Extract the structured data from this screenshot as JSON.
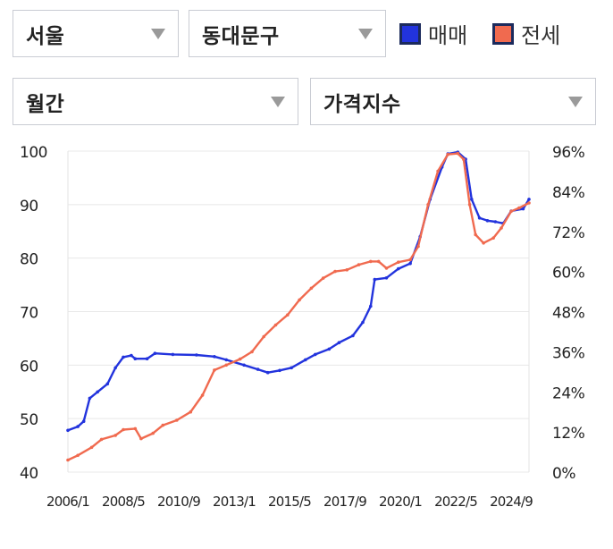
{
  "filters": {
    "region": "서울",
    "district": "동대문구",
    "period": "월간",
    "index_type": "가격지수"
  },
  "legend": [
    {
      "label": "매매",
      "color": "#2233dd"
    },
    {
      "label": "전세",
      "color": "#f06a4f"
    }
  ],
  "chart_data": {
    "type": "line",
    "title": "",
    "x_ticks": [
      "2006/1",
      "2008/5",
      "2010/9",
      "2013/1",
      "2015/5",
      "2017/9",
      "2020/1",
      "2022/5",
      "2024/9"
    ],
    "x_range": [
      "2006/1",
      "2025/6"
    ],
    "y_left": {
      "ticks": [
        "100",
        "90",
        "80",
        "70",
        "60",
        "50",
        "40"
      ],
      "range": [
        40,
        100
      ]
    },
    "y_right": {
      "ticks": [
        "96%",
        "84%",
        "72%",
        "60%",
        "48%",
        "36%",
        "24%",
        "12%",
        "0%"
      ],
      "range": [
        0,
        96
      ]
    },
    "grid": true,
    "series": [
      {
        "name": "매매",
        "color": "#2233dd",
        "axis": "left",
        "points": [
          [
            "2006/1",
            47.8
          ],
          [
            "2006/6",
            48.5
          ],
          [
            "2006/9",
            49.5
          ],
          [
            "2006/12",
            53.8
          ],
          [
            "2007/4",
            55.0
          ],
          [
            "2007/9",
            56.5
          ],
          [
            "2008/1",
            59.5
          ],
          [
            "2008/5",
            61.5
          ],
          [
            "2008/9",
            61.8
          ],
          [
            "2008/11",
            61.2
          ],
          [
            "2009/5",
            61.2
          ],
          [
            "2009/9",
            62.2
          ],
          [
            "2010/6",
            62.0
          ],
          [
            "2011/6",
            61.9
          ],
          [
            "2012/3",
            61.6
          ],
          [
            "2012/9",
            61.0
          ],
          [
            "2013/6",
            60.0
          ],
          [
            "2014/1",
            59.2
          ],
          [
            "2014/6",
            58.6
          ],
          [
            "2014/12",
            59.0
          ],
          [
            "2015/6",
            59.5
          ],
          [
            "2016/1",
            61.0
          ],
          [
            "2016/6",
            62.0
          ],
          [
            "2017/1",
            63.0
          ],
          [
            "2017/6",
            64.2
          ],
          [
            "2018/1",
            65.5
          ],
          [
            "2018/6",
            68.0
          ],
          [
            "2018/10",
            71.0
          ],
          [
            "2018/12",
            76.0
          ],
          [
            "2019/6",
            76.3
          ],
          [
            "2019/12",
            78.0
          ],
          [
            "2020/6",
            79.0
          ],
          [
            "2020/11",
            84.0
          ],
          [
            "2021/4",
            91.0
          ],
          [
            "2021/10",
            97.0
          ],
          [
            "2022/1",
            99.5
          ],
          [
            "2022/6",
            99.8
          ],
          [
            "2022/10",
            98.5
          ],
          [
            "2023/1",
            91.0
          ],
          [
            "2023/5",
            87.5
          ],
          [
            "2023/9",
            87.0
          ],
          [
            "2024/1",
            86.8
          ],
          [
            "2024/5",
            86.5
          ],
          [
            "2024/9",
            88.8
          ],
          [
            "2025/3",
            89.2
          ],
          [
            "2025/6",
            91.0
          ]
        ]
      },
      {
        "name": "전세",
        "color": "#f06a4f",
        "axis": "right",
        "points": [
          [
            "2006/1",
            3.6
          ],
          [
            "2006/6",
            5.0
          ],
          [
            "2007/1",
            7.4
          ],
          [
            "2007/6",
            9.8
          ],
          [
            "2008/1",
            11.0
          ],
          [
            "2008/5",
            12.7
          ],
          [
            "2008/11",
            13.0
          ],
          [
            "2009/2",
            10.0
          ],
          [
            "2009/8",
            11.6
          ],
          [
            "2010/1",
            14.0
          ],
          [
            "2010/8",
            15.5
          ],
          [
            "2011/3",
            18.0
          ],
          [
            "2011/9",
            23.0
          ],
          [
            "2012/3",
            30.5
          ],
          [
            "2012/9",
            32.0
          ],
          [
            "2013/4",
            33.8
          ],
          [
            "2013/10",
            36.0
          ],
          [
            "2014/4",
            40.5
          ],
          [
            "2014/10",
            44.0
          ],
          [
            "2015/4",
            47.0
          ],
          [
            "2015/10",
            51.5
          ],
          [
            "2016/4",
            55.0
          ],
          [
            "2016/10",
            58.0
          ],
          [
            "2017/4",
            60.0
          ],
          [
            "2017/10",
            60.5
          ],
          [
            "2018/4",
            62.0
          ],
          [
            "2018/10",
            63.0
          ],
          [
            "2019/2",
            63.0
          ],
          [
            "2019/6",
            61.0
          ],
          [
            "2019/12",
            62.8
          ],
          [
            "2020/6",
            63.5
          ],
          [
            "2020/10",
            67.5
          ],
          [
            "2021/3",
            80.0
          ],
          [
            "2021/8",
            90.0
          ],
          [
            "2022/1",
            95.0
          ],
          [
            "2022/6",
            95.3
          ],
          [
            "2022/9",
            93.5
          ],
          [
            "2022/12",
            80.0
          ],
          [
            "2023/3",
            71.0
          ],
          [
            "2023/7",
            68.5
          ],
          [
            "2023/12",
            70.0
          ],
          [
            "2024/4",
            73.0
          ],
          [
            "2024/9",
            78.0
          ],
          [
            "2025/1",
            79.0
          ],
          [
            "2025/6",
            80.5
          ]
        ]
      }
    ]
  }
}
